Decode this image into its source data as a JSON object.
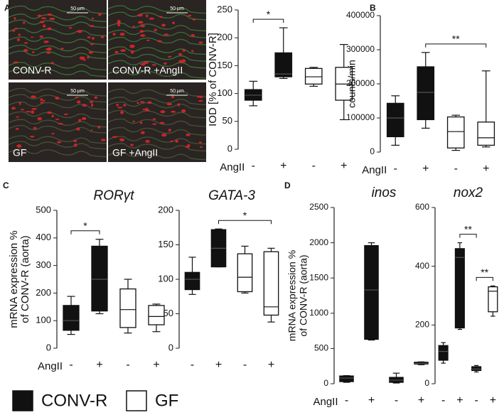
{
  "panels": [
    "A",
    "B",
    "C",
    "D"
  ],
  "images": [
    {
      "label": "CONV-R",
      "scale": "50 µm"
    },
    {
      "label": "CONV-R +AngII",
      "scale": "50 µm"
    },
    {
      "label": "GF",
      "scale": "50 µm"
    },
    {
      "label": "GF +AngII",
      "scale": "50 µm"
    }
  ],
  "legend": [
    {
      "name": "CONV-R",
      "color": "#111111"
    },
    {
      "name": "GF",
      "color": "#ffffff"
    }
  ],
  "chart_data": [
    {
      "type": "box",
      "ylabel": [
        "IOD [% of CONV-R]"
      ],
      "xlabel": "AngII",
      "categories": [
        "-",
        "+",
        "-",
        "+"
      ],
      "colors": [
        "#111111",
        "#111111",
        "#ffffff",
        "#ffffff"
      ],
      "stats": [
        {
          "min": 78,
          "q1": 88,
          "median": 97,
          "q3": 107,
          "max": 122
        },
        {
          "min": 127,
          "q1": 130,
          "median": 135,
          "q3": 173,
          "max": 218
        },
        {
          "min": 113,
          "q1": 117,
          "median": 130,
          "q3": 145,
          "max": 147
        },
        {
          "min": 53,
          "q1": 88,
          "median": 117,
          "q3": 147,
          "max": 188
        }
      ],
      "ylim": [
        0,
        250
      ],
      "yticks": [
        0,
        50,
        100,
        150,
        200,
        250
      ],
      "annotations": [
        {
          "text": "*",
          "groups": [
            0,
            1
          ]
        }
      ]
    },
    {
      "type": "box",
      "ylabel": [
        "counts/min"
      ],
      "xlabel": "AngII",
      "categories": [
        "-",
        "+",
        "-",
        "+"
      ],
      "colors": [
        "#111111",
        "#111111",
        "#ffffff",
        "#ffffff"
      ],
      "stats": [
        {
          "min": 20000,
          "q1": 45000,
          "median": 100000,
          "q3": 143000,
          "max": 165000
        },
        {
          "min": 70000,
          "q1": 95000,
          "median": 175000,
          "q3": 250000,
          "max": 292000
        },
        {
          "min": 5000,
          "q1": 12000,
          "median": 60000,
          "q3": 103000,
          "max": 108000
        },
        {
          "min": 15000,
          "q1": 20000,
          "median": 42000,
          "q3": 88000,
          "max": 238000
        }
      ],
      "ylim": [
        0,
        400000
      ],
      "yticks": [
        0,
        100000,
        200000,
        300000,
        400000
      ],
      "annotations": [
        {
          "text": "**",
          "groups": [
            1,
            3
          ]
        }
      ]
    },
    {
      "type": "box",
      "title": "RORγt",
      "ylabel": [
        "mRNA expression %",
        "of CONV-R (aorta)"
      ],
      "xlabel": "AngII",
      "categories": [
        "-",
        "+",
        "-",
        "+"
      ],
      "colors": [
        "#111111",
        "#111111",
        "#ffffff",
        "#ffffff"
      ],
      "stats": [
        {
          "min": 50,
          "q1": 65,
          "median": 100,
          "q3": 155,
          "max": 188
        },
        {
          "min": 125,
          "q1": 135,
          "median": 250,
          "q3": 370,
          "max": 395
        },
        {
          "min": 55,
          "q1": 75,
          "median": 140,
          "q3": 215,
          "max": 250
        },
        {
          "min": 60,
          "q1": 85,
          "median": 115,
          "q3": 155,
          "max": 160
        }
      ],
      "ylim": [
        0,
        500
      ],
      "yticks": [
        0,
        100,
        200,
        300,
        400,
        500
      ],
      "annotations": [
        {
          "text": "*",
          "groups": [
            0,
            1
          ]
        }
      ]
    },
    {
      "type": "box",
      "title": "GATA-3",
      "categories": [
        "-",
        "+",
        "-",
        "+"
      ],
      "colors": [
        "#111111",
        "#111111",
        "#ffffff",
        "#ffffff"
      ],
      "stats": [
        {
          "min": 78,
          "q1": 85,
          "median": 100,
          "q3": 110,
          "max": 132
        },
        {
          "min": 118,
          "q1": 118,
          "median": 145,
          "q3": 172,
          "max": 173
        },
        {
          "min": 80,
          "q1": 82,
          "median": 103,
          "q3": 137,
          "max": 148
        },
        {
          "min": 38,
          "q1": 48,
          "median": 60,
          "q3": 140,
          "max": 145
        }
      ],
      "ylim": [
        0,
        200
      ],
      "yticks": [
        0,
        50,
        100,
        150,
        200
      ],
      "annotations": [
        {
          "text": "*",
          "groups": [
            1,
            3
          ]
        }
      ]
    },
    {
      "type": "box",
      "title": "inos",
      "ylabel": [
        "mRNA expression %",
        "of CONV-R (aorta)"
      ],
      "xlabel": "AngII",
      "categories": [
        "-",
        "+",
        "-",
        "+"
      ],
      "colors": [
        "#111111",
        "#111111",
        "#111111",
        "#111111"
      ],
      "stats": [
        {
          "min": 20,
          "q1": 30,
          "median": 80,
          "q3": 110,
          "max": 115
        },
        {
          "min": 620,
          "q1": 630,
          "median": 1330,
          "q3": 1960,
          "max": 2000
        },
        {
          "min": 10,
          "q1": 20,
          "median": 50,
          "q3": 90,
          "max": 150
        },
        {
          "min": 270,
          "q1": 280,
          "median": 290,
          "q3": 305,
          "max": 310
        }
      ],
      "ylim": [
        0,
        2500
      ],
      "yticks": [
        0,
        500,
        1000,
        1500,
        2000,
        2500
      ],
      "annotations": []
    },
    {
      "type": "box",
      "title": "nox2",
      "categories": [
        "-",
        "+",
        "-",
        "+"
      ],
      "colors": [
        "#111111",
        "#111111",
        "#111111",
        "#ffffff"
      ],
      "stats": [
        {
          "min": 70,
          "q1": 80,
          "median": 110,
          "q3": 130,
          "max": 140
        },
        {
          "min": 185,
          "q1": 190,
          "median": 430,
          "q3": 460,
          "max": 480
        },
        {
          "min": 40,
          "q1": 45,
          "median": 50,
          "q3": 58,
          "max": 62
        },
        {
          "min": 230,
          "q1": 245,
          "median": 315,
          "q3": 330,
          "max": 333
        }
      ],
      "ylim": [
        0,
        600
      ],
      "yticks": [
        0,
        200,
        400,
        600
      ],
      "annotations": [
        {
          "text": "**",
          "groups": [
            1,
            2
          ]
        },
        {
          "text": "**",
          "groups": [
            2,
            3
          ]
        }
      ]
    }
  ]
}
